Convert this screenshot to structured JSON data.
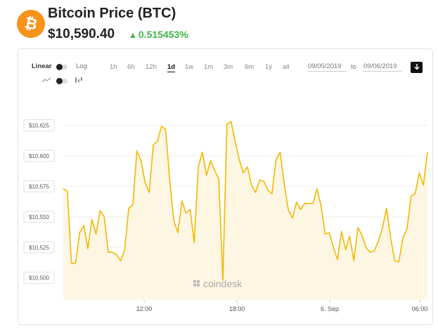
{
  "header": {
    "logo_glyph": "₿",
    "title": "Bitcoin Price (BTC)",
    "price": "$10,590.40",
    "change_arrow": "▲",
    "change": "0.515453%",
    "change_color": "#3bb54a",
    "logo_color": "#f7931a"
  },
  "controls": {
    "scale_linear": "Linear",
    "scale_log": "Log",
    "ranges": [
      "1h",
      "6h",
      "12h",
      "1d",
      "1w",
      "1m",
      "3m",
      "6m",
      "1y",
      "all"
    ],
    "active_range": "1d",
    "date_from": "09/05/2019",
    "date_to_label": "to",
    "date_to": "09/06/2019",
    "download_icon": "download-icon",
    "line_icon": "line-chart-icon",
    "candle_icon": "candlestick-icon"
  },
  "watermark": "coindesk",
  "chart_data": {
    "type": "area",
    "line_color": "#f5b700",
    "fill_color": "#fdf6e3",
    "y_ticks": [
      10500,
      10525,
      10550,
      10575,
      10600,
      10625
    ],
    "y_tick_labels": [
      "$10,500",
      "$10,525",
      "$10,550",
      "$10,575",
      "$10,600",
      "$10,625"
    ],
    "ylim": [
      10482,
      10650
    ],
    "x_tick_labels": [
      "12:00",
      "18:00",
      "6. Sep",
      "06:00"
    ],
    "grid": true,
    "values": [
      10573,
      10571,
      10512,
      10512,
      10537,
      10543,
      10524,
      10548,
      10536,
      10555,
      10550,
      10521,
      10521,
      10519,
      10514,
      10523,
      10557,
      10560,
      10604,
      10596,
      10578,
      10570,
      10609,
      10612,
      10624,
      10622,
      10581,
      10547,
      10537,
      10563,
      10553,
      10556,
      10529,
      10591,
      10603,
      10584,
      10596,
      10588,
      10581,
      10498,
      10626,
      10628,
      10612,
      10597,
      10586,
      10591,
      10576,
      10570,
      10580,
      10579,
      10572,
      10569,
      10597,
      10603,
      10577,
      10556,
      10549,
      10562,
      10556,
      10561,
      10561,
      10561,
      10573,
      10559,
      10536,
      10537,
      10525,
      10515,
      10538,
      10523,
      10534,
      10514,
      10541,
      10535,
      10525,
      10521,
      10522,
      10530,
      10541,
      10557,
      10533,
      10514,
      10513,
      10533,
      10540,
      10567,
      10569,
      10586,
      10576,
      10603
    ]
  }
}
